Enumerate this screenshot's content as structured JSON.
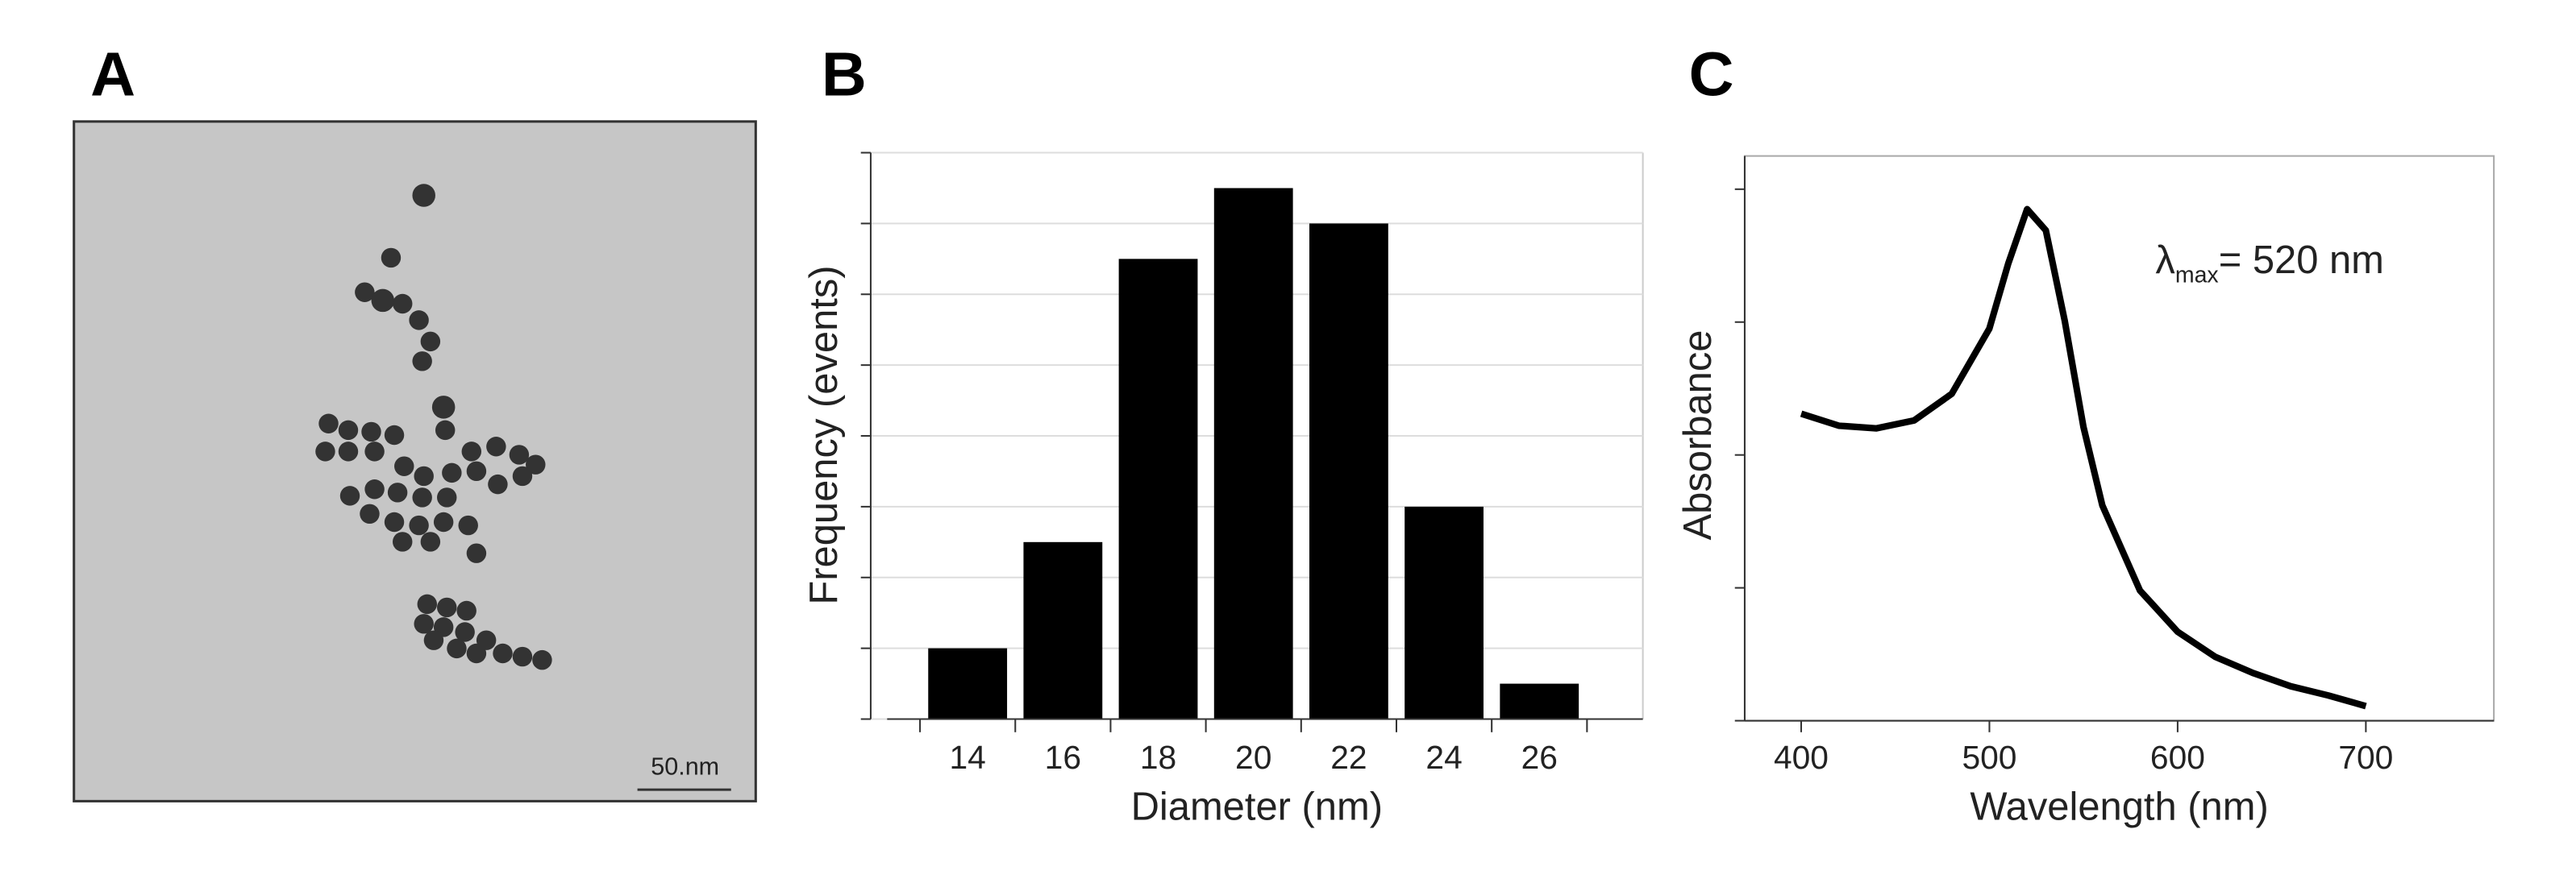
{
  "image_panel": {
    "label": "A",
    "scale_bar": "50.nm"
  },
  "chart_data": [
    {
      "type": "bar",
      "label": "B",
      "xlabel": "Diameter (nm)",
      "ylabel": "Frequency (events)",
      "categories": [
        "14",
        "16",
        "18",
        "20",
        "22",
        "24",
        "26"
      ],
      "values": [
        1,
        2.5,
        6.5,
        7.5,
        7,
        3,
        0.5
      ],
      "color": "#000000",
      "ylim": [
        0,
        8
      ],
      "yticks": [
        0,
        1,
        2,
        3,
        4,
        5,
        6,
        7,
        8
      ],
      "grid": true
    },
    {
      "type": "line",
      "label": "C",
      "xlabel": "Wavelength (nm)",
      "ylabel": "Absorbance",
      "x": [
        400,
        420,
        440,
        460,
        480,
        500,
        510,
        520,
        530,
        540,
        550,
        560,
        580,
        600,
        620,
        640,
        660,
        680,
        700
      ],
      "values": [
        2.31,
        2.22,
        2.2,
        2.26,
        2.46,
        2.95,
        3.44,
        3.85,
        3.69,
        3.01,
        2.21,
        1.62,
        0.98,
        0.67,
        0.48,
        0.36,
        0.26,
        0.19,
        0.11
      ],
      "color": "#000000",
      "xlim": [
        370,
        768
      ],
      "xticks": [
        400,
        500,
        600,
        700
      ],
      "ylim": [
        0,
        4.25
      ],
      "yticks": [
        0,
        1,
        2,
        3,
        4
      ],
      "grid": false,
      "annotation": {
        "symbol": "λ",
        "subscript": "max",
        "text": "= 520 nm"
      }
    }
  ]
}
